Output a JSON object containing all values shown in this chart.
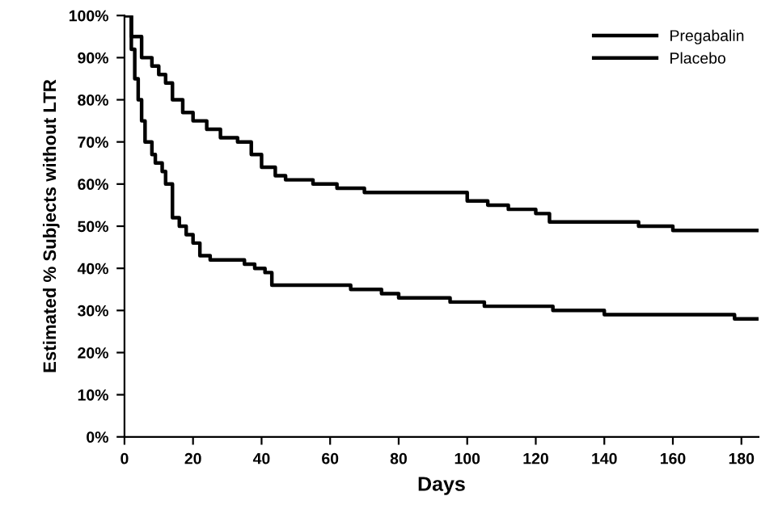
{
  "chart_data": {
    "type": "step",
    "xlabel": "Days",
    "ylabel": "Estimated % Subjects without LTR",
    "xlim": [
      0,
      185
    ],
    "xticks": [
      0,
      20,
      40,
      60,
      80,
      100,
      120,
      140,
      160,
      180
    ],
    "ylim": [
      0,
      100
    ],
    "yticks": [
      {
        "value": 0,
        "label": "0%"
      },
      {
        "value": 10,
        "label": "10%"
      },
      {
        "value": 20,
        "label": "20%"
      },
      {
        "value": 30,
        "label": "30%"
      },
      {
        "value": 40,
        "label": "40%"
      },
      {
        "value": 50,
        "label": "50%"
      },
      {
        "value": 60,
        "label": "60%"
      },
      {
        "value": 70,
        "label": "70%"
      },
      {
        "value": 80,
        "label": "80%"
      },
      {
        "value": 90,
        "label": "90%"
      },
      {
        "value": 100,
        "label": "100%"
      }
    ],
    "grid": false,
    "legend": "top right",
    "marker": "none",
    "line_style": "solid",
    "series": [
      {
        "name": "Pregabalin",
        "color": "#000000",
        "x": [
          0,
          2,
          5,
          8,
          10,
          12,
          14,
          17,
          20,
          24,
          28,
          33,
          37,
          40,
          44,
          47,
          55,
          62,
          70,
          90,
          100,
          106,
          112,
          120,
          124,
          130,
          145,
          150,
          155,
          160,
          185
        ],
        "values": [
          100,
          95,
          90,
          88,
          86,
          84,
          80,
          77,
          75,
          73,
          71,
          70,
          67,
          64,
          62,
          61,
          60,
          59,
          58,
          58,
          56,
          55,
          54,
          53,
          51,
          51,
          51,
          50,
          50,
          49,
          49
        ]
      },
      {
        "name": "Placebo",
        "color": "#000000",
        "x": [
          0,
          2,
          3,
          4,
          5,
          6,
          8,
          9,
          11,
          12,
          14,
          16,
          18,
          20,
          22,
          25,
          30,
          35,
          38,
          41,
          43,
          50,
          66,
          75,
          80,
          95,
          105,
          120,
          125,
          140,
          150,
          178,
          185
        ],
        "values": [
          100,
          92,
          85,
          80,
          75,
          70,
          67,
          65,
          63,
          60,
          52,
          50,
          48,
          46,
          43,
          42,
          42,
          41,
          40,
          39,
          36,
          36,
          35,
          34,
          33,
          32,
          31,
          31,
          30,
          29,
          29,
          28,
          28
        ]
      }
    ]
  }
}
